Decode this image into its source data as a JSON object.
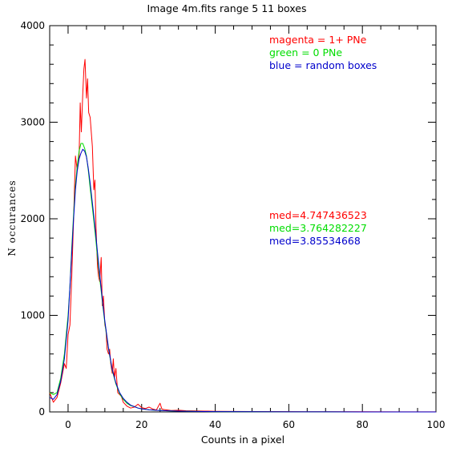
{
  "chart_data": {
    "type": "line",
    "title": "Image 4m.fits   range 5    11 boxes",
    "xlabel": "Counts in a pixel",
    "ylabel": "N occurances",
    "xlim": [
      -5,
      100
    ],
    "ylim": [
      0,
      4000
    ],
    "x_ticks": [
      0,
      20,
      40,
      60,
      80,
      100
    ],
    "y_ticks": [
      0,
      1000,
      2000,
      3000,
      4000
    ],
    "grid": false,
    "series": [
      {
        "name": "magenta = 1+ PNe",
        "color": "#ff0000",
        "x": [
          -5,
          -4,
          -3,
          -2,
          -1,
          -0.5,
          0,
          0.5,
          1,
          1.5,
          2,
          2.5,
          3,
          3.3,
          3.6,
          4,
          4.3,
          4.6,
          5,
          5.3,
          5.6,
          6,
          6.3,
          6.6,
          7,
          7.3,
          7.6,
          8,
          8.3,
          8.6,
          9,
          9.3,
          9.6,
          10,
          10.3,
          10.6,
          11,
          11.3,
          11.6,
          12,
          12.3,
          12.6,
          13,
          13.5,
          14,
          14.5,
          15,
          16,
          17,
          18,
          19,
          20,
          21,
          22,
          23,
          24,
          25,
          25.5,
          26,
          27,
          28,
          30,
          32,
          35,
          38,
          40,
          45,
          50,
          60,
          70,
          80,
          90,
          100
        ],
        "values": [
          200,
          100,
          150,
          300,
          500,
          450,
          800,
          900,
          1400,
          2000,
          2650,
          2500,
          2650,
          3200,
          2900,
          3300,
          3550,
          3650,
          3250,
          3450,
          3100,
          3050,
          2900,
          2750,
          2300,
          2400,
          1900,
          1500,
          1400,
          1350,
          1600,
          1100,
          1200,
          900,
          850,
          650,
          600,
          650,
          500,
          400,
          550,
          350,
          450,
          200,
          180,
          160,
          100,
          60,
          40,
          50,
          80,
          45,
          35,
          50,
          30,
          20,
          90,
          30,
          25,
          20,
          15,
          18,
          12,
          10,
          8,
          6,
          5,
          4,
          3,
          2,
          2,
          1,
          1
        ]
      },
      {
        "name": "green = 0 PNe",
        "color": "#00dd00",
        "x": [
          -5,
          -4,
          -3,
          -2,
          -1,
          0,
          0.5,
          1,
          1.5,
          2,
          2.5,
          3,
          3.5,
          4,
          4.5,
          5,
          5.5,
          6,
          6.5,
          7,
          7.5,
          8,
          8.5,
          9,
          9.5,
          10,
          11,
          12,
          13,
          14,
          15,
          16,
          17,
          18,
          19,
          20,
          22,
          25,
          28,
          30,
          35,
          40,
          50,
          60,
          70,
          80,
          90,
          100
        ],
        "values": [
          200,
          180,
          200,
          350,
          600,
          1000,
          1300,
          1700,
          2050,
          2350,
          2550,
          2700,
          2780,
          2780,
          2730,
          2650,
          2500,
          2320,
          2150,
          1980,
          1800,
          1600,
          1420,
          1250,
          1080,
          920,
          650,
          430,
          290,
          190,
          130,
          90,
          65,
          55,
          40,
          32,
          22,
          15,
          10,
          8,
          5,
          3,
          2,
          1,
          1,
          0,
          0,
          0
        ]
      },
      {
        "name": "blue = random boxes",
        "color": "#0000cc",
        "x": [
          -5,
          -4,
          -3,
          -2,
          -1,
          0,
          0.5,
          1,
          1.5,
          2,
          2.5,
          3,
          3.5,
          4,
          4.5,
          5,
          5.5,
          6,
          6.5,
          7,
          7.5,
          8,
          8.5,
          9,
          9.5,
          10,
          11,
          12,
          13,
          14,
          15,
          16,
          17,
          18,
          19,
          20,
          22,
          25,
          28,
          30,
          35,
          40,
          50,
          60,
          70,
          80,
          90,
          100
        ],
        "values": [
          150,
          130,
          180,
          320,
          550,
          950,
          1300,
          1650,
          2000,
          2300,
          2500,
          2620,
          2680,
          2720,
          2700,
          2640,
          2520,
          2370,
          2200,
          2030,
          1850,
          1650,
          1460,
          1280,
          1100,
          940,
          660,
          440,
          300,
          200,
          140,
          100,
          70,
          55,
          40,
          32,
          22,
          15,
          10,
          8,
          5,
          3,
          2,
          1,
          1,
          0,
          0,
          0
        ]
      }
    ],
    "legend": [
      "magenta = 1+ PNe",
      "green = 0 PNe",
      "blue = random boxes"
    ],
    "legend_colors": [
      "#ff0000",
      "#00dd00",
      "#0000cc"
    ],
    "medians": [
      "med=4.747436523",
      "med=3.764282227",
      "med=3.85534668"
    ],
    "median_colors": [
      "#ff0000",
      "#00dd00",
      "#0000cc"
    ]
  }
}
